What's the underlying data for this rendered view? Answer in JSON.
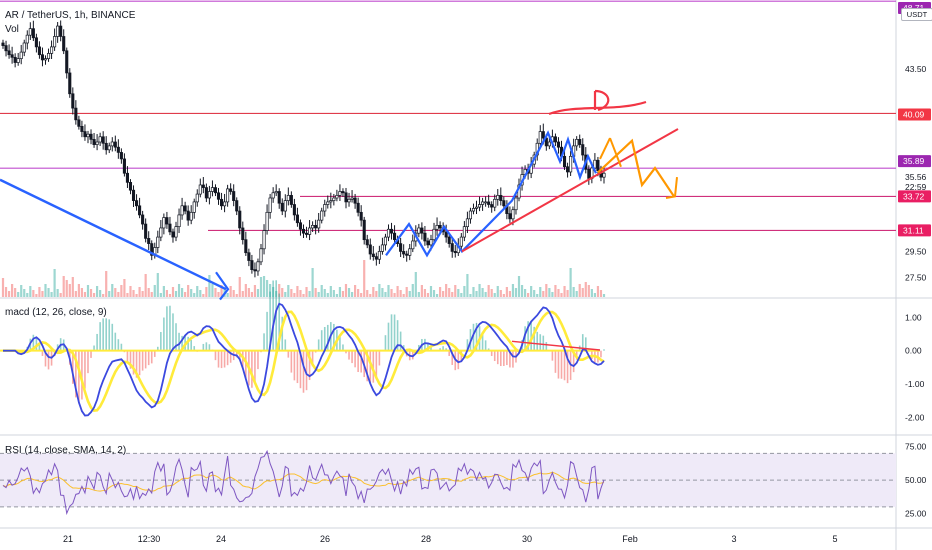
{
  "header": {
    "title": "AR / TetherUS, 1h, BINANCE",
    "vol_label": "Vol",
    "currency_badge": "USDT",
    "macd_label": "macd (12, 26, close, 9)",
    "rsi_label": "RSI (14, close, SMA, 14, 2)"
  },
  "colors": {
    "up": "#26a69a",
    "down": "#ef5350",
    "candle": "#131722",
    "red_line": "#e03c4c",
    "magenta_line": "#d0307c",
    "purple_line": "#c04fcf",
    "blue_drawing": "#2962ff",
    "orange_drawing": "#ff9800",
    "red_drawing": "#f23645",
    "macd_line": "#3b49df",
    "signal_line": "#ffeb3b",
    "rsi_line": "#7e57c2",
    "rsi_band": "#efeaf8"
  },
  "chart_data": {
    "type": "candlestick",
    "symbol": "AR / TetherUS",
    "interval": "1h",
    "exchange": "BINANCE",
    "x_ticks": [
      "21",
      "12:30",
      "24",
      "26",
      "28",
      "30",
      "Feb",
      "3",
      "5"
    ],
    "price_axis": {
      "ticks": [
        43.5,
        29.5,
        27.5
      ],
      "ylim": [
        26.0,
        48.8
      ]
    },
    "price_labels": [
      {
        "value": "48.71",
        "color": "#9c27b0"
      },
      {
        "value": "40.09",
        "color": "#f23645"
      },
      {
        "value": "35.89",
        "color": "#9c27b0"
      },
      {
        "value": "35.56",
        "color": "plain"
      },
      {
        "value": "22:59",
        "color": "plain"
      },
      {
        "value": "33.72",
        "color": "#e91e63"
      },
      {
        "value": "31.11",
        "color": "#e91e63"
      }
    ],
    "horizontal_lines": [
      {
        "price": 48.71,
        "kind": "purple"
      },
      {
        "price": 40.09,
        "kind": "red"
      },
      {
        "price": 35.89,
        "kind": "purple"
      },
      {
        "price": 33.72,
        "kind": "magenta"
      },
      {
        "price": 31.11,
        "kind": "magenta"
      }
    ],
    "close_series": [
      45.3,
      44.9,
      44.6,
      44.4,
      44.0,
      44.3,
      44.8,
      45.5,
      46.1,
      46.6,
      45.9,
      45.2,
      44.6,
      44.2,
      44.3,
      44.7,
      45.2,
      46.0,
      46.8,
      46.0,
      44.9,
      43.2,
      41.6,
      40.5,
      39.6,
      39.1,
      38.7,
      38.3,
      38.5,
      38.1,
      37.7,
      37.9,
      38.3,
      37.8,
      37.3,
      37.6,
      37.9,
      37.5,
      37.1,
      36.6,
      35.5,
      34.8,
      34.2,
      33.4,
      33.0,
      32.3,
      31.6,
      30.5,
      30.1,
      29.2,
      29.8,
      30.6,
      31.3,
      32.1,
      31.6,
      31.0,
      30.6,
      31.4,
      32.3,
      33.0,
      32.6,
      31.9,
      32.5,
      33.3,
      33.9,
      34.6,
      34.4,
      33.6,
      34.1,
      34.4,
      34.0,
      33.5,
      33.0,
      33.3,
      34.3,
      34.1,
      33.4,
      32.6,
      31.3,
      30.4,
      29.4,
      28.8,
      28.1,
      28.0,
      28.7,
      29.7,
      31.1,
      32.5,
      33.6,
      34.0,
      34.1,
      33.2,
      32.6,
      33.4,
      33.8,
      33.1,
      32.3,
      31.7,
      31.2,
      30.9,
      30.8,
      31.3,
      31.5,
      31.3,
      31.9,
      32.6,
      33.1,
      33.3,
      33.4,
      33.6,
      33.8,
      34.1,
      34.0,
      33.3,
      33.5,
      33.6,
      33.2,
      32.5,
      31.9,
      30.4,
      30.0,
      29.3,
      29.1,
      28.9,
      29.5,
      30.0,
      30.6,
      31.2,
      30.9,
      30.4,
      30.1,
      29.5,
      29.3,
      29.2,
      29.7,
      30.3,
      30.9,
      31.3,
      30.9,
      30.3,
      30.0,
      30.4,
      31.2,
      31.5,
      31.3,
      31.0,
      30.6,
      30.1,
      29.5,
      29.4,
      29.9,
      30.6,
      31.4,
      32.0,
      32.6,
      32.8,
      32.9,
      33.1,
      33.3,
      33.3,
      33.1,
      32.9,
      33.5,
      33.8,
      33.4,
      33.0,
      32.4,
      32.0,
      32.7,
      33.6,
      34.6,
      35.4,
      35.8,
      35.5,
      36.2,
      36.9,
      37.8,
      38.7,
      38.2,
      37.6,
      37.9,
      38.3,
      37.9,
      37.5,
      36.8,
      36.0,
      35.6,
      36.8,
      37.6,
      38.1,
      37.7,
      36.9,
      35.8,
      35.1,
      35.9,
      36.5,
      35.7,
      35.2,
      35.5
    ],
    "forecast_zigzag": [
      35.56,
      38.0,
      34.6,
      35.9,
      33.72
    ],
    "macd_axis": {
      "ticks": [
        "1.00",
        "0.00",
        "-1.00",
        "-2.00"
      ],
      "ylim": [
        -2.5,
        1.55
      ]
    },
    "rsi_axis": {
      "ticks": [
        "75.00",
        "50.00",
        "25.00"
      ],
      "ylim": [
        15,
        83
      ],
      "band": [
        30,
        70
      ]
    }
  }
}
